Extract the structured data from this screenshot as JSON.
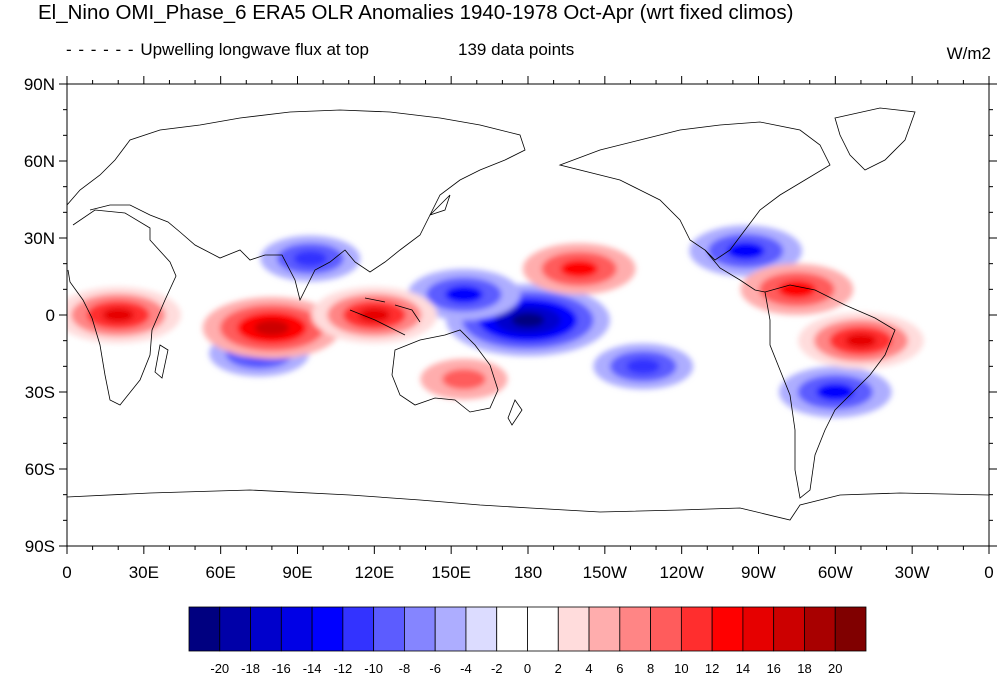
{
  "title": "El_Nino OMI_Phase_6 ERA5 OLR Anomalies 1940-1978 Oct-Apr (wrt fixed climos)",
  "left_subtitle": "Upwelling longwave flux at top",
  "center_subtitle": "139 data points",
  "units": "W/m2",
  "colors": {
    "negative": [
      "#000080",
      "#0000a8",
      "#0000cc",
      "#0000e6",
      "#0000ff",
      "#3333ff",
      "#5c5cff",
      "#8585ff",
      "#adadff",
      "#dcdcff"
    ],
    "near_zero": [
      "#ffffff",
      "#ffffff"
    ],
    "positive": [
      "#ffdcdc",
      "#ffadad",
      "#ff8585",
      "#ff5c5c",
      "#ff2e2e",
      "#ff0000",
      "#e60000",
      "#cc0000",
      "#a80000",
      "#800000"
    ]
  },
  "chart_data": {
    "type": "heatmap",
    "projection": "cylindrical-equidistant",
    "lon_range": [
      0,
      360
    ],
    "lat_range": [
      -90,
      90
    ],
    "x_tick_labels": [
      "0",
      "30E",
      "60E",
      "90E",
      "120E",
      "150E",
      "180",
      "150W",
      "120W",
      "90W",
      "60W",
      "30W",
      "0"
    ],
    "y_tick_labels": [
      "90N",
      "60N",
      "30N",
      "0",
      "30S",
      "60S",
      "90S"
    ],
    "colorbar_labels": [
      "-20",
      "-18",
      "-16",
      "-14",
      "-12",
      "-10",
      "-8",
      "-6",
      "-4",
      "-2",
      "0",
      "2",
      "4",
      "6",
      "8",
      "10",
      "12",
      "14",
      "16",
      "18",
      "20"
    ],
    "anomaly_features": [
      {
        "lon": 180,
        "lat": -2,
        "value": -20
      },
      {
        "lon": 155,
        "lat": 8,
        "value": -12
      },
      {
        "lon": 95,
        "lat": 22,
        "value": -10
      },
      {
        "lon": 265,
        "lat": 25,
        "value": -12
      },
      {
        "lon": 300,
        "lat": -30,
        "value": -12
      },
      {
        "lon": 225,
        "lat": -20,
        "value": -10
      },
      {
        "lon": 75,
        "lat": -15,
        "value": -10
      },
      {
        "lon": 20,
        "lat": 0,
        "value": 14
      },
      {
        "lon": 80,
        "lat": -5,
        "value": 16
      },
      {
        "lon": 120,
        "lat": 0,
        "value": 14
      },
      {
        "lon": 200,
        "lat": 18,
        "value": 12
      },
      {
        "lon": 310,
        "lat": -10,
        "value": 14
      },
      {
        "lon": 285,
        "lat": 10,
        "value": 12
      },
      {
        "lon": 155,
        "lat": -25,
        "value": 8
      }
    ]
  }
}
